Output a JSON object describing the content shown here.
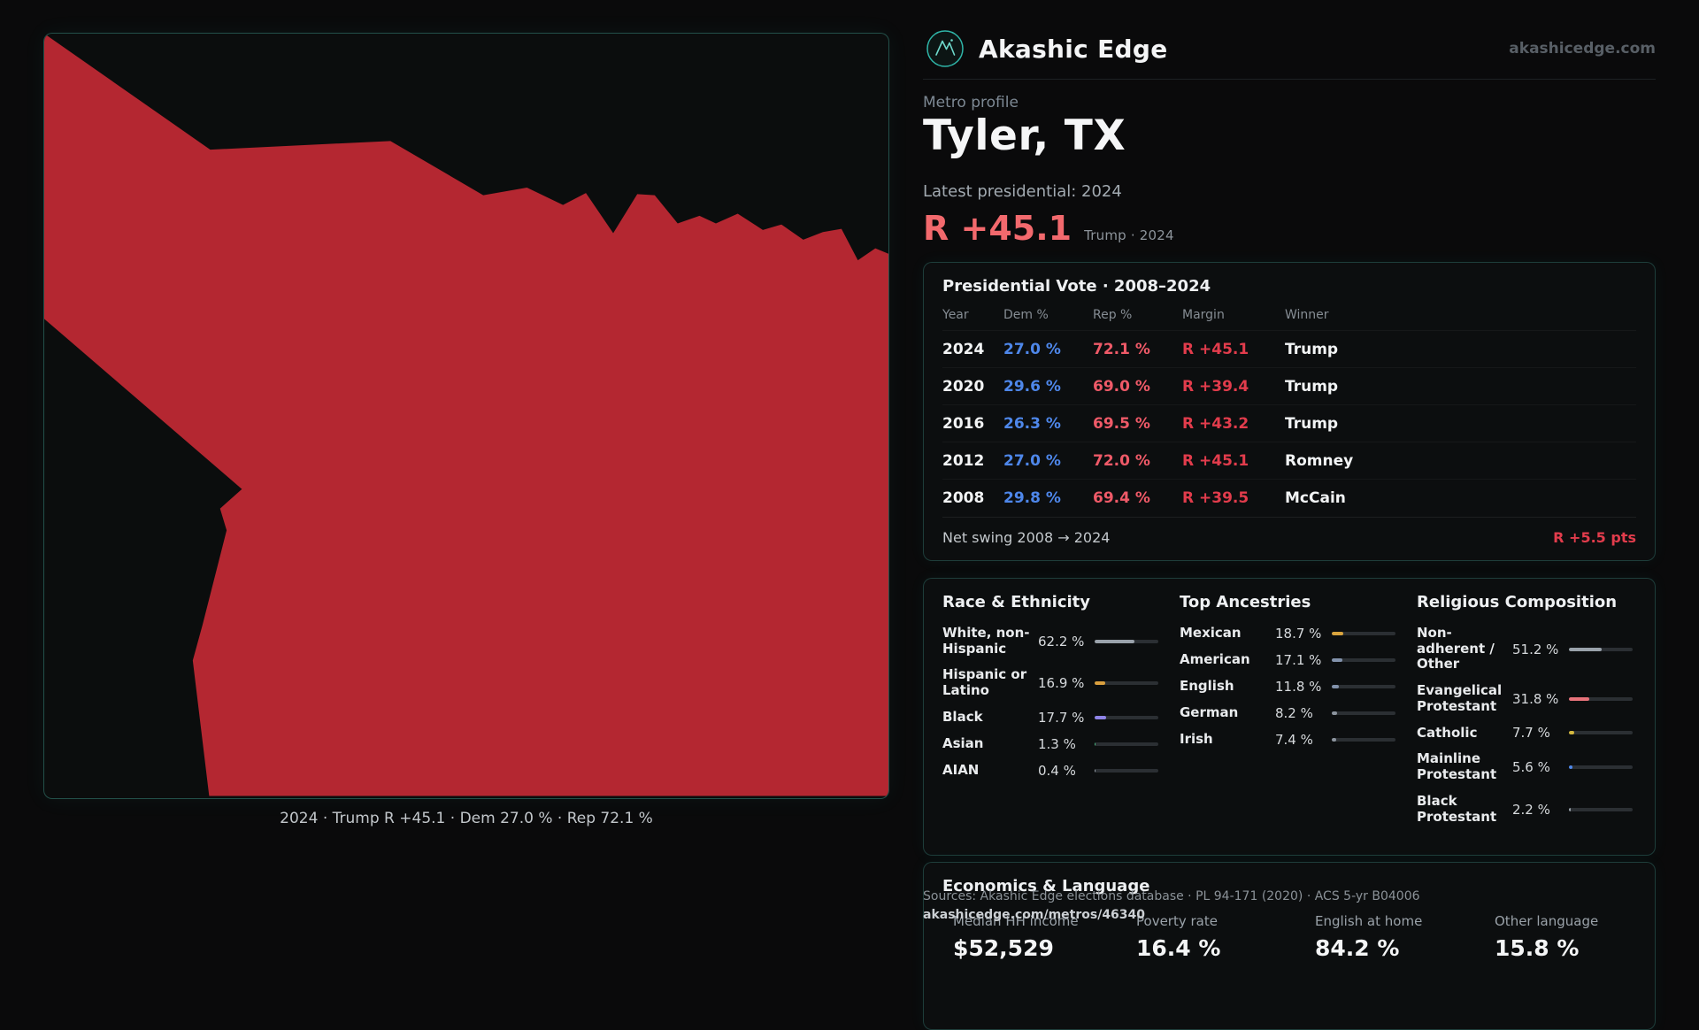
{
  "brand": {
    "name": "Akashic Edge",
    "domain": "akashicedge.com"
  },
  "profile": {
    "kicker": "Metro profile",
    "title": "Tyler, TX",
    "latest_label": "Latest presidential: 2024",
    "headline_margin": "R +45.1",
    "headline_context": "Trump · 2024"
  },
  "map": {
    "caption": "2024 · Trump R +45.1 · Dem 27.0 % · Rep 72.1 %",
    "fill": "#b42731"
  },
  "vote_table": {
    "title": "Presidential Vote · 2008–2024",
    "columns": [
      "Year",
      "Dem %",
      "Rep %",
      "Margin",
      "Winner"
    ],
    "rows": [
      {
        "year": "2024",
        "dem": "27.0 %",
        "rep": "72.1 %",
        "margin": "R +45.1",
        "winner": "Trump"
      },
      {
        "year": "2020",
        "dem": "29.6 %",
        "rep": "69.0 %",
        "margin": "R +39.4",
        "winner": "Trump"
      },
      {
        "year": "2016",
        "dem": "26.3 %",
        "rep": "69.5 %",
        "margin": "R +43.2",
        "winner": "Trump"
      },
      {
        "year": "2012",
        "dem": "27.0 %",
        "rep": "72.0 %",
        "margin": "R +45.1",
        "winner": "Romney"
      },
      {
        "year": "2008",
        "dem": "29.8 %",
        "rep": "69.4 %",
        "margin": "R +39.5",
        "winner": "McCain"
      }
    ],
    "footer_label": "Net swing 2008 → 2024",
    "footer_value": "R +5.5 pts"
  },
  "demographics": {
    "race": {
      "title": "Race & Ethnicity",
      "items": [
        {
          "label": "White, non-Hispanic",
          "value": "62.2 %",
          "pct": 62.2,
          "color": "#9aa2ab"
        },
        {
          "label": "Hispanic or Latino",
          "value": "16.9 %",
          "pct": 16.9,
          "color": "#d99f3e"
        },
        {
          "label": "Black",
          "value": "17.7 %",
          "pct": 17.7,
          "color": "#8f84e8"
        },
        {
          "label": "Asian",
          "value": "1.3 %",
          "pct": 1.3,
          "color": "#49b87f"
        },
        {
          "label": "AIAN",
          "value": "0.4 %",
          "pct": 0.4,
          "color": "#9aa2ab"
        }
      ]
    },
    "ancestries": {
      "title": "Top Ancestries",
      "items": [
        {
          "label": "Mexican",
          "value": "18.7 %",
          "pct": 18.7,
          "color": "#d9a43e"
        },
        {
          "label": "American",
          "value": "17.1 %",
          "pct": 17.1,
          "color": "#8292ab"
        },
        {
          "label": "English",
          "value": "11.8 %",
          "pct": 11.8,
          "color": "#8292ab"
        },
        {
          "label": "German",
          "value": "8.2 %",
          "pct": 8.2,
          "color": "#8c949e"
        },
        {
          "label": "Irish",
          "value": "7.4 %",
          "pct": 7.4,
          "color": "#8c949e"
        }
      ]
    },
    "religion": {
      "title": "Religious Composition",
      "items": [
        {
          "label": "Non-adherent / Other",
          "value": "51.2 %",
          "pct": 51.2,
          "color": "#9aa2ab"
        },
        {
          "label": "Evangelical Protestant",
          "value": "31.8 %",
          "pct": 31.8,
          "color": "#e8737b"
        },
        {
          "label": "Catholic",
          "value": "7.7 %",
          "pct": 7.7,
          "color": "#d4b83e"
        },
        {
          "label": "Mainline Protestant",
          "value": "5.6 %",
          "pct": 5.6,
          "color": "#4e87ea"
        },
        {
          "label": "Black Protestant",
          "value": "2.2 %",
          "pct": 2.2,
          "color": "#9aa2ab"
        }
      ]
    }
  },
  "economics": {
    "title": "Economics & Language",
    "stats": [
      {
        "label": "Median HH income",
        "value": "$52,529"
      },
      {
        "label": "Poverty rate",
        "value": "16.4 %"
      },
      {
        "label": "English at home",
        "value": "84.2 %"
      },
      {
        "label": "Other language",
        "value": "15.8 %"
      }
    ]
  },
  "footer": {
    "sources": "Sources: Akashic Edge elections database · PL 94-171 (2020) · ACS 5-yr B04006",
    "permalink": "akashicedge.com/metros/46340"
  },
  "colors": {
    "accent_teal": "#2dd4bf",
    "dem_blue": "#4e87ea",
    "rep_red": "#ef5a68",
    "margin_red": "#e23c4c",
    "headline_red": "#f2696d",
    "map_red": "#b42731"
  }
}
